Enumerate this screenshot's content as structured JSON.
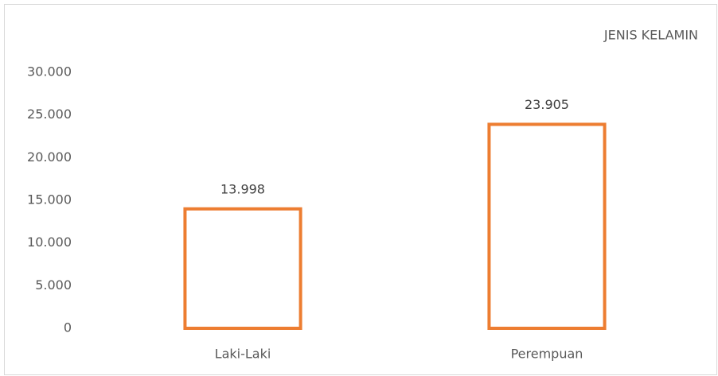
{
  "chart_data": {
    "type": "bar",
    "title": "JENIS KELAMIN",
    "categories": [
      "Laki-Laki",
      "Perempuan"
    ],
    "values": [
      13998,
      23905
    ],
    "value_labels": [
      "13.998",
      "23.905"
    ],
    "color": "#ed7d31",
    "ylim": [
      0,
      30000
    ],
    "yticks": [
      0,
      {
        "value": 5000,
        "label": "5.000"
      },
      {
        "value": 10000,
        "label": "10.000"
      },
      {
        "value": 15000,
        "label": "15.000"
      },
      {
        "value": 20000,
        "label": "20.000"
      },
      {
        "value": 25000,
        "label": "25.000"
      },
      {
        "value": 30000,
        "label": "30.000"
      }
    ],
    "grid": false
  }
}
